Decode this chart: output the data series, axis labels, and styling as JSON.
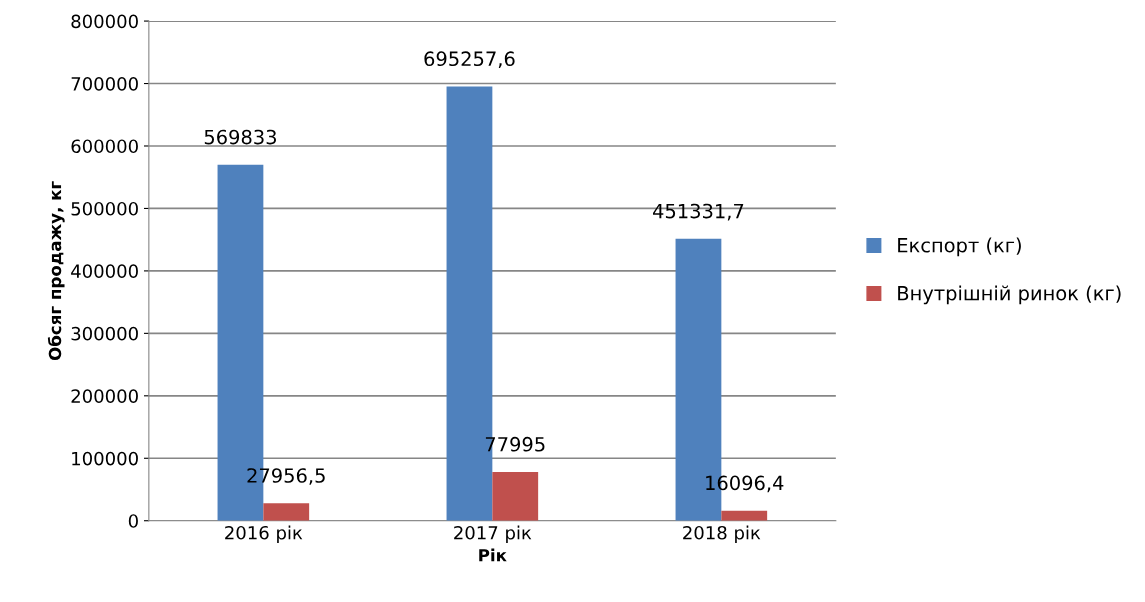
{
  "chart_data": {
    "type": "bar",
    "xlabel": "Рік",
    "ylabel": "Обсяг продажу, кг",
    "categories": [
      "2016 рік",
      "2017 рік",
      "2018 рік"
    ],
    "series": [
      {
        "name": "Експорт (кг)",
        "color": "#4f81bd",
        "values": [
          569833,
          695257.6,
          451331.7
        ],
        "value_labels": [
          "569833",
          "695257,6",
          "451331,7"
        ]
      },
      {
        "name": "Внутрішній ринок (кг)",
        "color": "#c0504d",
        "values": [
          27956.5,
          77995,
          16096.4
        ],
        "value_labels": [
          "27956,5",
          "77995",
          "16096,4"
        ]
      }
    ],
    "ylim": [
      0,
      800000
    ],
    "yticks": [
      0,
      100000,
      200000,
      300000,
      400000,
      500000,
      600000,
      700000,
      800000
    ],
    "grid": "y",
    "legend": "right"
  }
}
